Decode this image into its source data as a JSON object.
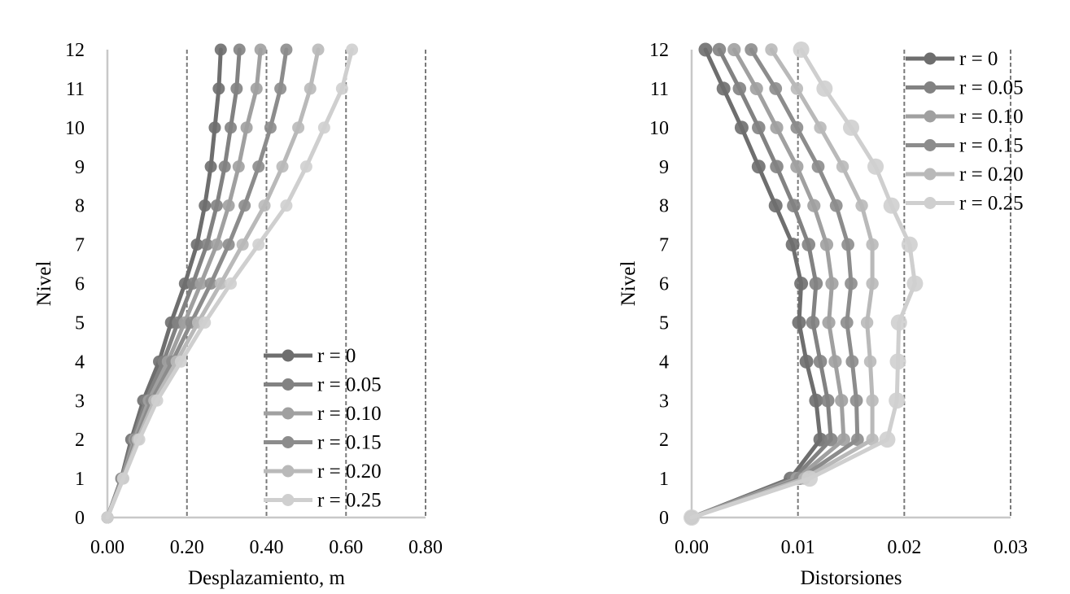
{
  "chart_data": [
    {
      "type": "line",
      "orientation": "vertical-profile",
      "xlabel": "Desplazamiento, m",
      "ylabel": "Nivel",
      "xlim": [
        0,
        0.8
      ],
      "ylim": [
        0,
        12
      ],
      "x_ticks": [
        "0.00",
        "0.20",
        "0.40",
        "0.60",
        "0.80"
      ],
      "y_ticks": [
        "0",
        "1",
        "2",
        "3",
        "4",
        "5",
        "6",
        "7",
        "8",
        "9",
        "10",
        "11",
        "12"
      ],
      "gridlines": "vertical dashed",
      "legend_position": "bottom-right",
      "y": [
        0,
        1,
        2,
        3,
        4,
        5,
        6,
        7,
        8,
        9,
        10,
        11,
        12
      ],
      "series": [
        {
          "name": "r = 0",
          "color": "#6e6e6e",
          "x": [
            0,
            0.035,
            0.06,
            0.09,
            0.13,
            0.16,
            0.195,
            0.225,
            0.245,
            0.26,
            0.27,
            0.28,
            0.285
          ]
        },
        {
          "name": "r = 0.05",
          "color": "#828282",
          "x": [
            0,
            0.036,
            0.064,
            0.097,
            0.141,
            0.177,
            0.215,
            0.25,
            0.275,
            0.295,
            0.31,
            0.325,
            0.332
          ]
        },
        {
          "name": "r = 0.10",
          "color": "#a0a0a0",
          "x": [
            0,
            0.037,
            0.068,
            0.104,
            0.152,
            0.194,
            0.235,
            0.275,
            0.305,
            0.33,
            0.35,
            0.375,
            0.385
          ]
        },
        {
          "name": "r = 0.15",
          "color": "#8c8c8c",
          "x": [
            0,
            0.038,
            0.072,
            0.111,
            0.163,
            0.211,
            0.26,
            0.305,
            0.345,
            0.38,
            0.41,
            0.435,
            0.45
          ]
        },
        {
          "name": "r = 0.20",
          "color": "#b9b9b9",
          "x": [
            0,
            0.039,
            0.076,
            0.118,
            0.174,
            0.228,
            0.285,
            0.34,
            0.395,
            0.44,
            0.48,
            0.51,
            0.53
          ]
        },
        {
          "name": "r = 0.25",
          "color": "#cfcfcf",
          "x": [
            0,
            0.04,
            0.08,
            0.125,
            0.185,
            0.245,
            0.31,
            0.38,
            0.45,
            0.5,
            0.545,
            0.59,
            0.615
          ]
        }
      ]
    },
    {
      "type": "line",
      "orientation": "vertical-profile",
      "xlabel": "Distorsiones",
      "ylabel": "Nivel",
      "xlim": [
        0,
        0.03
      ],
      "ylim": [
        0,
        12
      ],
      "x_ticks": [
        "0.00",
        "0.01",
        "0.02",
        "0.03"
      ],
      "y_ticks": [
        "0",
        "1",
        "2",
        "3",
        "4",
        "5",
        "6",
        "7",
        "8",
        "9",
        "10",
        "11",
        "12"
      ],
      "gridlines": "vertical dashed",
      "legend_position": "top-right",
      "y": [
        0,
        1,
        2,
        3,
        4,
        5,
        6,
        7,
        8,
        9,
        10,
        11,
        12
      ],
      "series": [
        {
          "name": "r = 0",
          "color": "#6e6e6e",
          "x": [
            0,
            0.0093,
            0.0121,
            0.0117,
            0.0108,
            0.0101,
            0.0103,
            0.0095,
            0.0079,
            0.0063,
            0.0047,
            0.003,
            0.0013
          ]
        },
        {
          "name": "r = 0.05",
          "color": "#828282",
          "x": [
            0,
            0.0096,
            0.0131,
            0.0128,
            0.0121,
            0.0114,
            0.0117,
            0.011,
            0.0096,
            0.008,
            0.0063,
            0.0045,
            0.0026
          ]
        },
        {
          "name": "r = 0.10",
          "color": "#a0a0a0",
          "x": [
            0,
            0.0099,
            0.0143,
            0.0141,
            0.0135,
            0.0129,
            0.0132,
            0.0127,
            0.0115,
            0.0099,
            0.008,
            0.0061,
            0.004
          ]
        },
        {
          "name": "r = 0.15",
          "color": "#8c8c8c",
          "x": [
            0,
            0.0102,
            0.0156,
            0.0155,
            0.0151,
            0.0146,
            0.015,
            0.0147,
            0.0136,
            0.0119,
            0.0099,
            0.0079,
            0.0056
          ]
        },
        {
          "name": "r = 0.20",
          "color": "#b9b9b9",
          "x": [
            0,
            0.0106,
            0.017,
            0.017,
            0.0168,
            0.0165,
            0.017,
            0.017,
            0.016,
            0.0142,
            0.0121,
            0.0099,
            0.0075
          ]
        },
        {
          "name": "r = 0.25",
          "color": "#cfcfcf",
          "x": [
            0,
            0.0111,
            0.0184,
            0.0193,
            0.0194,
            0.0195,
            0.021,
            0.0205,
            0.0188,
            0.0173,
            0.015,
            0.0125,
            0.0103
          ]
        }
      ]
    }
  ]
}
